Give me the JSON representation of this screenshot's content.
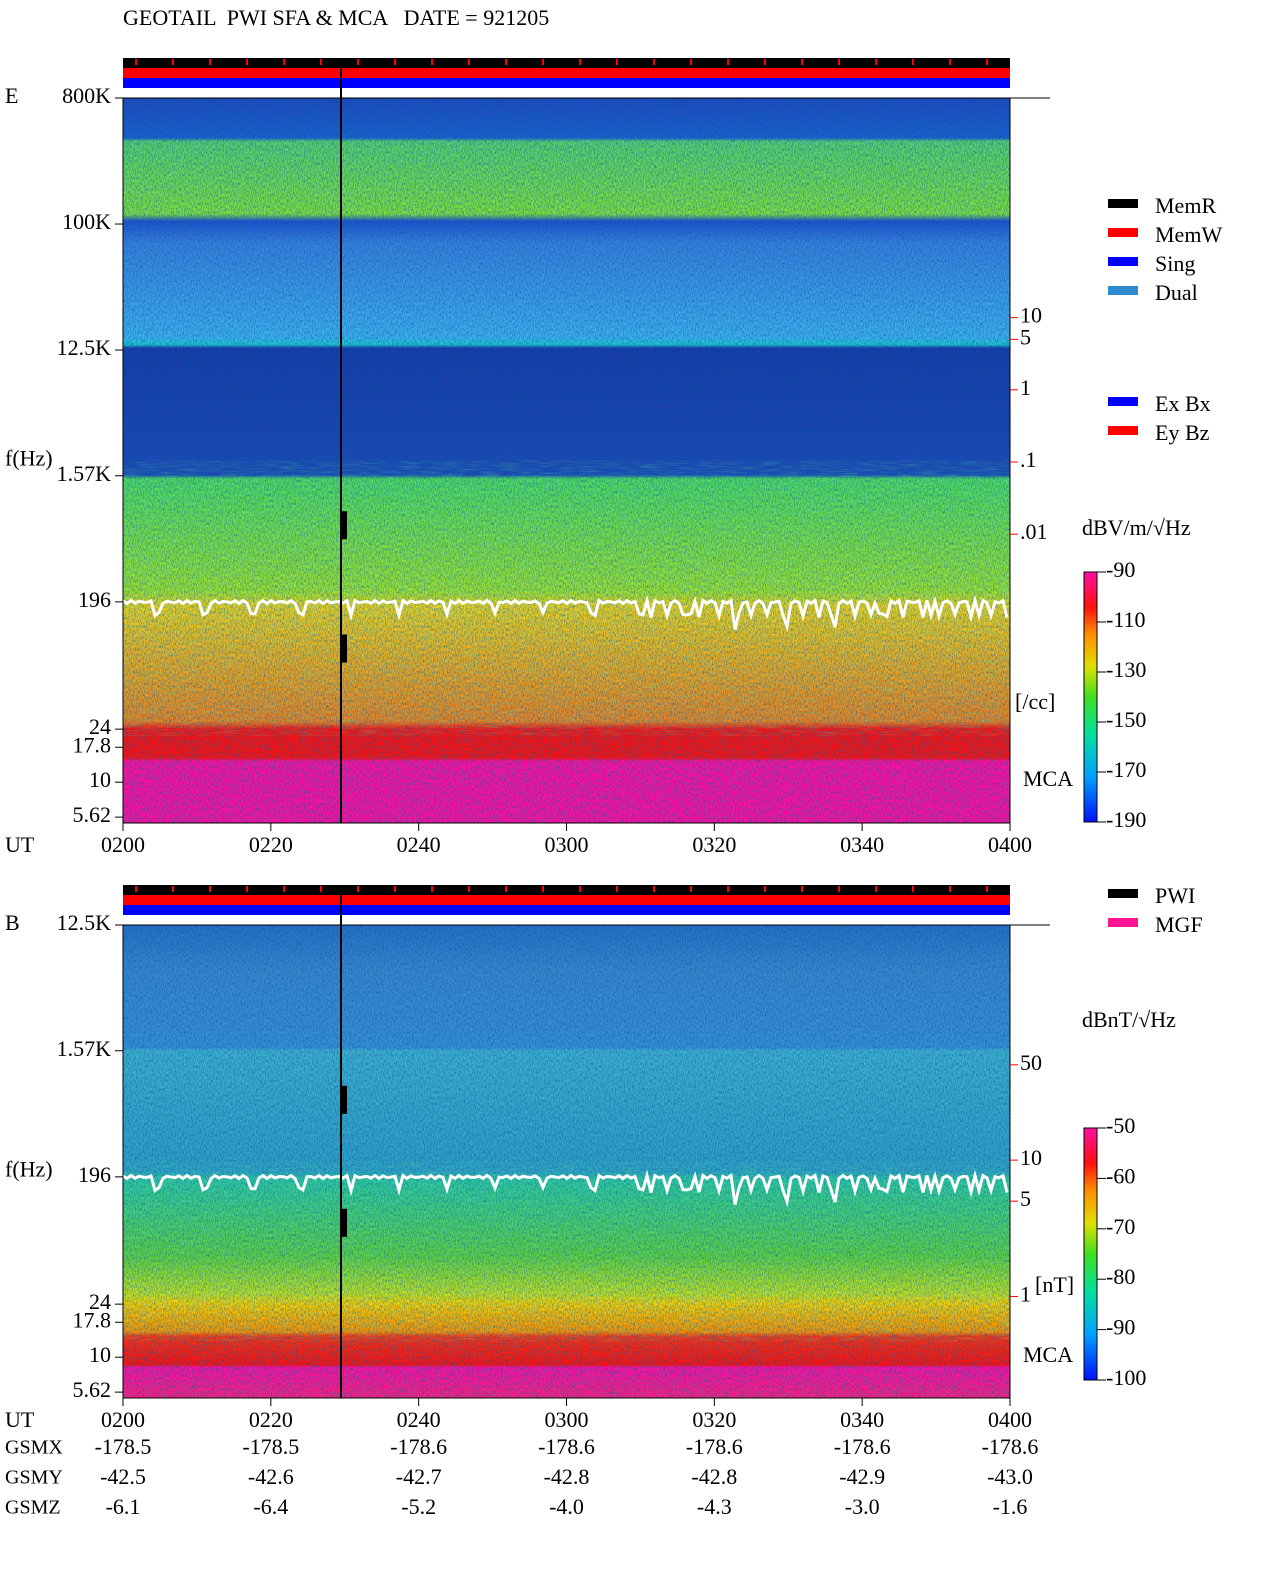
{
  "chart_data": [
    {
      "type": "spectrogram",
      "title": "GEOTAIL  PWI SFA & MCA   DATE = 921205",
      "panel_label": "E",
      "ylabel": "f(Hz)",
      "xlabel": "UT",
      "yscale": "log",
      "ylim": [
        5.1,
        800000
      ],
      "yticks": [
        {
          "value": 800000,
          "label": "800K"
        },
        {
          "value": 100000,
          "label": "100K"
        },
        {
          "value": 12500,
          "label": "12.5K"
        },
        {
          "value": 1570,
          "label": "1.57K"
        },
        196,
        24,
        17.8,
        10,
        5.62
      ],
      "xlim": [
        120,
        240
      ],
      "xticks": [
        {
          "value": 120,
          "label": "0200"
        },
        {
          "value": 140,
          "label": "0220"
        },
        {
          "value": 160,
          "label": "0240"
        },
        {
          "value": 180,
          "label": "0300"
        },
        {
          "value": 200,
          "label": "0320"
        },
        {
          "value": 220,
          "label": "0340"
        },
        {
          "value": 240,
          "label": "0400"
        }
      ],
      "receiver_label": "MCA",
      "density_scale": {
        "label": "[/cc]",
        "color": "#ff0000",
        "lim": [
          1e-06,
          11000
        ],
        "ticks": [
          10,
          5,
          1,
          {
            "value": 0.1,
            "label": ".1"
          },
          {
            "value": 0.01,
            "label": ".01"
          }
        ]
      },
      "colorbar": {
        "label": "dBV/m/√Hz",
        "lim": [
          -190,
          -90
        ],
        "ticks": [
          -90,
          -110,
          -130,
          -150,
          -170,
          -190
        ]
      },
      "legend": [
        {
          "name": "MemR",
          "color": "#000000"
        },
        {
          "name": "MemW",
          "color": "#ff0000"
        },
        {
          "name": "Sing",
          "color": "#0000ff"
        },
        {
          "name": "Dual",
          "color": "#2e8bd0"
        }
      ],
      "component_legend": [
        {
          "name": "Ex Bx",
          "color": "#0000ff"
        },
        {
          "name": "Ey Bz",
          "color": "#ff0000"
        }
      ]
    },
    {
      "type": "spectrogram",
      "panel_label": "B",
      "ylabel": "f(Hz)",
      "xlabel": "UT",
      "yscale": "log",
      "ylim": [
        5.1,
        12500
      ],
      "yticks": [
        {
          "value": 12500,
          "label": "12.5K"
        },
        {
          "value": 1570,
          "label": "1.57K"
        },
        196,
        24,
        17.8,
        10,
        5.62
      ],
      "xlim": [
        120,
        240
      ],
      "xticks": [
        {
          "value": 120,
          "label": "0200"
        },
        {
          "value": 140,
          "label": "0220"
        },
        {
          "value": 160,
          "label": "0240"
        },
        {
          "value": 180,
          "label": "0300"
        },
        {
          "value": 200,
          "label": "0320"
        },
        {
          "value": 220,
          "label": "0340"
        },
        {
          "value": 240,
          "label": "0400"
        }
      ],
      "receiver_label": "MCA",
      "density_scale": {
        "label": "[nT]",
        "color": "#ff0000",
        "lim": [
          0.18,
          530
        ],
        "ticks": [
          50,
          10,
          5,
          1
        ]
      },
      "colorbar": {
        "label": "dBnT/√Hz",
        "lim": [
          -100,
          -50
        ],
        "ticks": [
          -50,
          -60,
          -70,
          -80,
          -90,
          -100
        ]
      },
      "legend": [
        {
          "name": "PWI",
          "color": "#000000"
        },
        {
          "name": "MGF",
          "color": "#ff1493"
        }
      ],
      "orbit": [
        {
          "name": "GSMX",
          "values": [
            -178.5,
            -178.5,
            -178.6,
            -178.6,
            -178.6,
            -178.6,
            -178.6
          ]
        },
        {
          "name": "GSMY",
          "values": [
            -42.5,
            -42.6,
            -42.7,
            -42.8,
            -42.8,
            -42.9,
            -43.0
          ],
          "value_labels": [
            "-42.5",
            "-42.6",
            "-42.7",
            "-42.8",
            "-42.8",
            "-42.9",
            "-43.0"
          ]
        },
        {
          "name": "GSMZ",
          "values": [
            -6.1,
            -6.4,
            -5.2,
            -4.0,
            -4.3,
            -3.0,
            -1.6
          ],
          "value_labels": [
            "-6.1",
            "-6.4",
            "-5.2",
            "-4.0",
            "-4.3",
            "-3.0",
            "-1.6"
          ]
        }
      ]
    }
  ]
}
